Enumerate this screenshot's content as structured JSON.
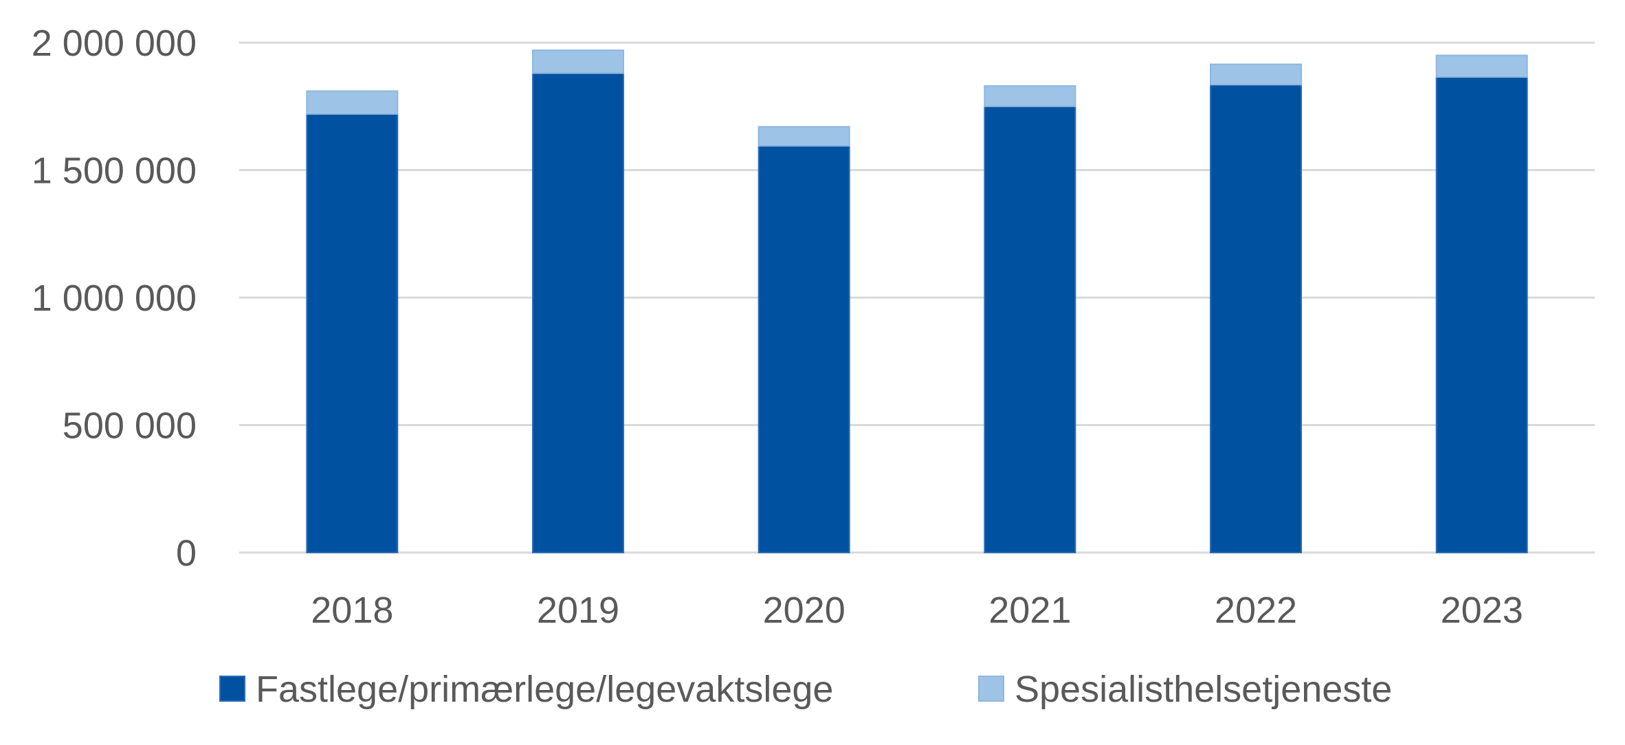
{
  "chart_data": {
    "type": "bar",
    "stacked": true,
    "categories": [
      "2018",
      "2019",
      "2020",
      "2021",
      "2022",
      "2023"
    ],
    "series": [
      {
        "name": "Fastlege/primærlege/legevaktslege",
        "color": "#0052a0",
        "values": [
          1720000,
          1880000,
          1595000,
          1750000,
          1835000,
          1865000
        ]
      },
      {
        "name": "Spesialisthelsetjeneste",
        "color": "#9dc3e6",
        "values": [
          90000,
          90000,
          75000,
          80000,
          80000,
          85000
        ]
      }
    ],
    "y_ticks": [
      "0",
      "500 000",
      "1 000 000",
      "1 500 000",
      "2 000 000"
    ],
    "ylim": [
      0,
      2000000
    ],
    "grid": true,
    "legend_position": "bottom",
    "title": "",
    "xlabel": "",
    "ylabel": ""
  }
}
